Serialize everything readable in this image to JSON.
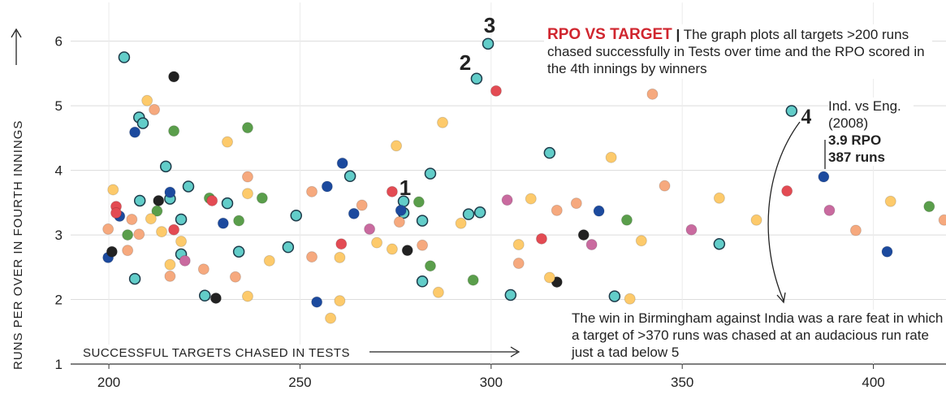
{
  "chart_data": {
    "type": "scatter",
    "title": "RPO VS TARGET",
    "subtitle": "The graph plots all targets >200 runs chased successfully in Tests over time and the RPO scored in the 4th innings by winners",
    "xlabel": "SUCCESSFUL TARGETS CHASED IN TESTS",
    "ylabel": "RUNS PER OVER IN FOURTH INNINGS",
    "xlim": [
      190,
      419
    ],
    "xticks": [
      200,
      250,
      300,
      350,
      400
    ],
    "ylim": [
      1,
      6.6
    ],
    "yticks": [
      1,
      2,
      3,
      4,
      5,
      6
    ],
    "grid": true,
    "annotations": [
      "1",
      "2",
      "3",
      "4"
    ],
    "callout": [
      "Ind. vs Eng.",
      "(2008)",
      "3.9 RPO",
      "387 runs"
    ],
    "note": "The win in Birmingham against India was a rare feat in which a target of >370 runs was chased at an audacious run rate just a tad below 5",
    "series": [
      {
        "color": "#62cdc9",
        "edgecolor": "#1d3b4a",
        "x": [
          204.0,
          207.9,
          208.9,
          214.9,
          216.0,
          220.8,
          208.1,
          218.9,
          218.9,
          206.8,
          225.1,
          231.0,
          234.0,
          246.9,
          249.0,
          263.1,
          277.1,
          277.1,
          282.0,
          282.0,
          284.1,
          294.1,
          297.1,
          296.2,
          299.2,
          305.1,
          315.3,
          332.3,
          359.7,
          378.6
        ],
        "values": [
          5.75,
          4.82,
          4.73,
          4.06,
          3.56,
          3.75,
          3.53,
          3.24,
          2.7,
          2.32,
          2.06,
          3.49,
          2.74,
          2.81,
          3.3,
          3.91,
          3.52,
          3.34,
          3.22,
          2.28,
          3.95,
          3.32,
          3.35,
          5.42,
          5.96,
          2.07,
          4.27,
          2.05,
          2.86,
          4.92
        ]
      },
      {
        "color": "#1c4a9e",
        "x": [
          199.8,
          202.8,
          206.8,
          216.0,
          229.9,
          254.4,
          257.1,
          261.1,
          264.1,
          276.4,
          328.2,
          387,
          403.6
        ],
        "values": [
          2.65,
          3.29,
          4.59,
          3.66,
          3.18,
          1.96,
          3.75,
          4.11,
          3.33,
          3.38,
          3.37,
          3.9,
          2.74
        ]
      },
      {
        "color": "#222222",
        "x": [
          200.8,
          213.0,
          217.0,
          228.0,
          278.1,
          324.2,
          317.2
        ],
        "values": [
          2.74,
          3.53,
          5.45,
          2.02,
          2.76,
          3.0,
          2.27
        ]
      },
      {
        "color": "#5a9e4b",
        "x": [
          204.9,
          212.6,
          217.0,
          226.3,
          234.0,
          236.3,
          240.1,
          281.1,
          284.1,
          295.3,
          335.5,
          414.6
        ],
        "values": [
          3.0,
          3.37,
          4.61,
          3.57,
          3.22,
          4.66,
          3.57,
          3.51,
          2.52,
          2.3,
          3.23,
          3.44
        ]
      },
      {
        "color": "#e34b53",
        "x": [
          201.9,
          201.9,
          217.0,
          227.0,
          260.8,
          274.1,
          301.3,
          313.2,
          377.4
        ],
        "values": [
          3.44,
          3.34,
          3.08,
          3.53,
          2.86,
          3.67,
          5.23,
          2.94,
          3.68
        ]
      },
      {
        "color": "#c96a9f",
        "x": [
          219.9,
          268.2,
          304.2,
          326.3,
          352.4,
          388.5
        ],
        "values": [
          2.6,
          3.09,
          3.54,
          2.85,
          3.08,
          3.38
        ]
      },
      {
        "color": "#f6a97e",
        "x": [
          199.8,
          204.9,
          206.0,
          207.9,
          211.9,
          216.0,
          233.1,
          236.3,
          224.8,
          253.1,
          253.1,
          266.2,
          276.0,
          282.0,
          307.2,
          317.2,
          322.3,
          342.2,
          345.4,
          395.4,
          418.5
        ],
        "values": [
          3.09,
          2.76,
          3.24,
          3.01,
          4.94,
          2.36,
          2.35,
          3.9,
          2.47,
          3.67,
          2.66,
          3.46,
          3.2,
          2.84,
          2.56,
          3.38,
          3.49,
          5.18,
          3.76,
          3.07,
          3.23
        ]
      },
      {
        "color": "#fdca6b",
        "x": [
          201.1,
          210.0,
          211.0,
          213.8,
          216.0,
          218.9,
          231.0,
          236.3,
          236.3,
          242.0,
          258.0,
          260.4,
          260.4,
          270.1,
          274.1,
          275.2,
          286.2,
          287.3,
          292.1,
          307.2,
          310.4,
          315.3,
          331.4,
          336.3,
          339.3,
          359.7,
          369.4,
          404.5
        ],
        "values": [
          3.7,
          5.08,
          3.25,
          3.05,
          2.54,
          2.9,
          4.44,
          3.64,
          2.05,
          2.6,
          1.71,
          1.98,
          2.65,
          2.88,
          2.78,
          4.38,
          2.11,
          4.74,
          3.18,
          2.85,
          3.56,
          2.34,
          4.2,
          2.01,
          2.91,
          3.57,
          3.23,
          3.52
        ]
      }
    ]
  }
}
